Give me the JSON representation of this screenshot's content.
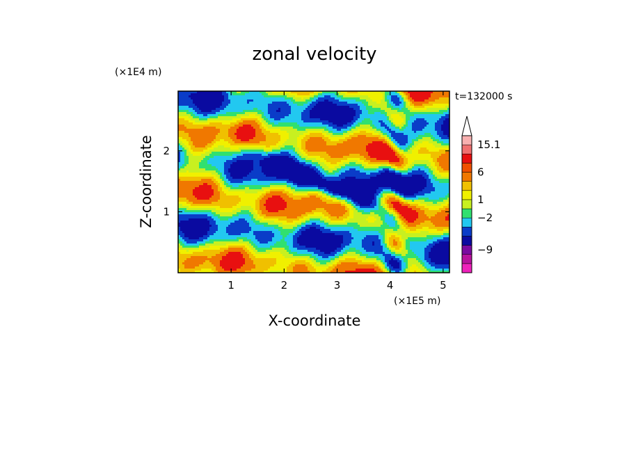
{
  "chart_data": {
    "type": "heatmap",
    "title": "zonal velocity",
    "xlabel": "X-coordinate",
    "ylabel": "Z-coordinate",
    "x_unit_label": "(×1E5 m)",
    "y_unit_label": "(×1E4 m)",
    "time_label": "t=132000 s",
    "xlim": [
      0,
      5.12
    ],
    "ylim": [
      0,
      2.98
    ],
    "x_ticks": [
      1,
      2,
      3,
      4,
      5
    ],
    "x_tick_labels": [
      "1",
      "2",
      "3",
      "4",
      "5"
    ],
    "y_ticks": [
      1,
      2
    ],
    "y_tick_labels": [
      "1",
      "2"
    ],
    "colorbar": {
      "colors": [
        "#ee22bb",
        "#b8129e",
        "#7a0aa0",
        "#0a0aa0",
        "#0a3cc8",
        "#22c8f0",
        "#30e070",
        "#c8f020",
        "#f0f000",
        "#f0c000",
        "#f07800",
        "#f05000",
        "#e81010",
        "#f07070",
        "#f8b0b0"
      ],
      "labels": [
        {
          "text": "15.1",
          "level": 15.1
        },
        {
          "text": "6",
          "level": 6
        },
        {
          "text": "1",
          "level": 1
        },
        {
          "text": "−2",
          "level": -2
        },
        {
          "text": "−9",
          "level": -9
        }
      ]
    },
    "field_palette": {
      "strong_neg": "#0a0aa0",
      "neg": "#0a3cc8",
      "weak_neg": "#22c8f0",
      "near_zero": "#30e070",
      "weak_pos": "#c8f020",
      "pos": "#f0f000",
      "mid_pos": "#f0c000",
      "strong_pos": "#f07800",
      "very_strong_pos": "#e81010"
    }
  }
}
